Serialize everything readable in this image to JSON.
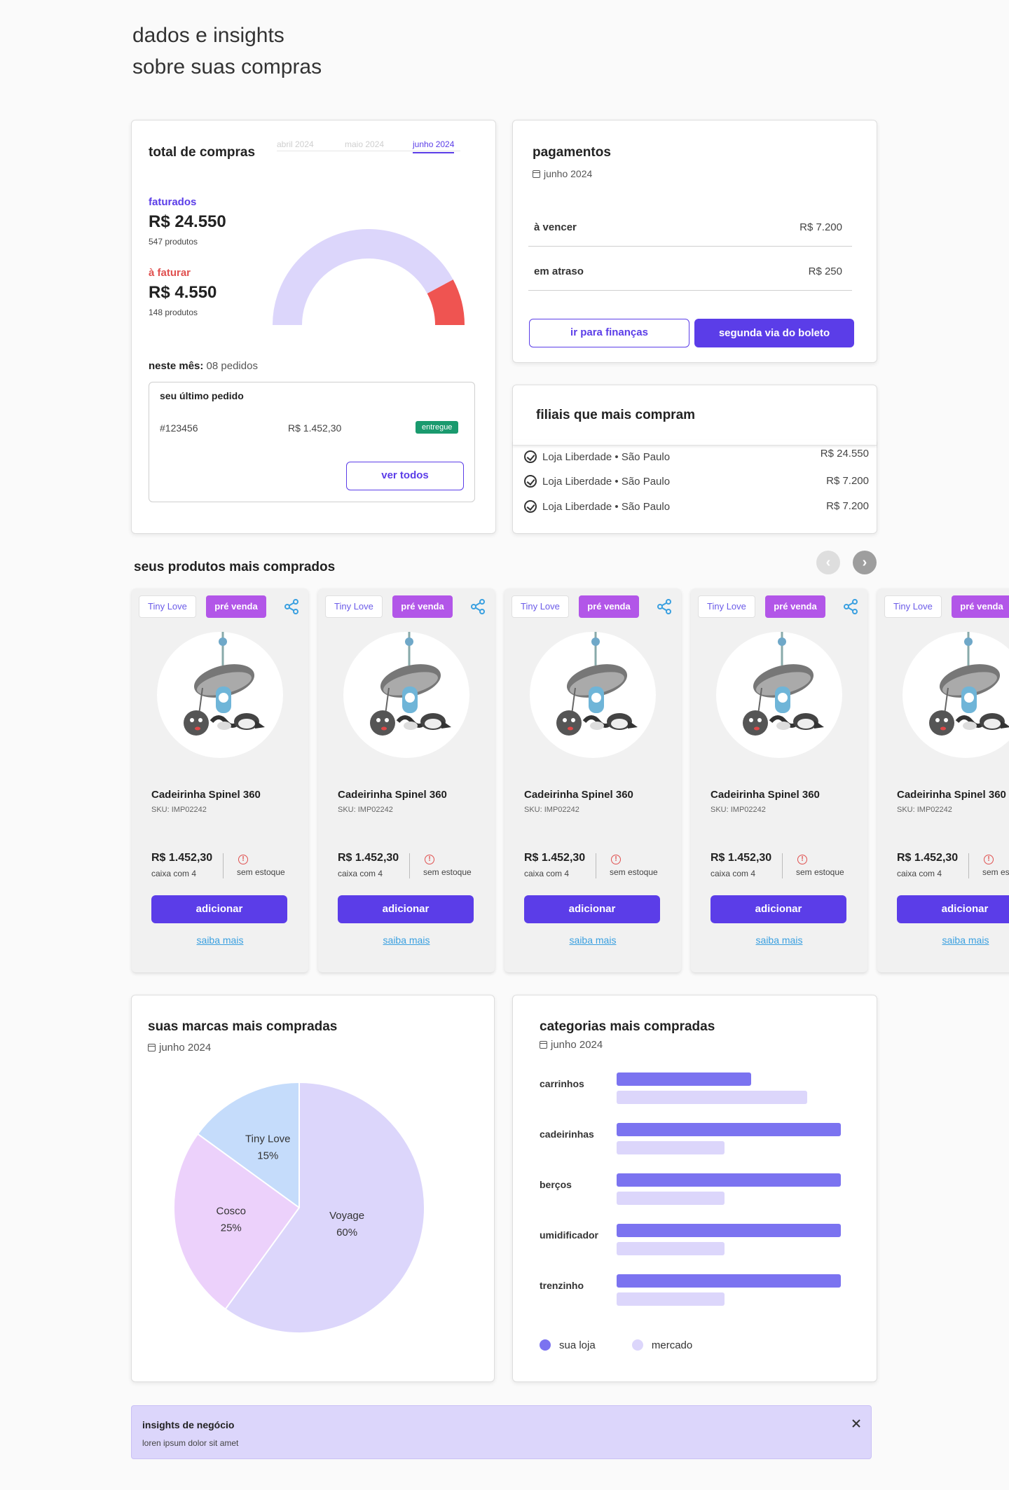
{
  "hero": {
    "line1": "dados e insights",
    "line2": "sobre suas compras"
  },
  "total": {
    "title": "total de compras",
    "tabs": [
      "abril 2024",
      "maio 2024",
      "junho 2024"
    ],
    "faturados": {
      "label": "faturados",
      "value": "R$ 24.550",
      "sub": "547 produtos"
    },
    "a_faturar": {
      "label": "à faturar",
      "value": "R$ 4.550",
      "sub": "148 produtos"
    },
    "gauge": {
      "faturados_fraction": 0.843,
      "a_faturar_fraction": 0.157,
      "color_faturados": "#dcd6fb",
      "color_a_faturar": "#ef5451"
    },
    "month_label": "neste mês:",
    "month_value": "08 pedidos",
    "last_order": {
      "title": "seu último pedido",
      "id": "#123456",
      "value": "R$ 1.452,30",
      "status": "entregue",
      "button": "ver todos"
    }
  },
  "pagamentos": {
    "title": "pagamentos",
    "period": "junho 2024",
    "rows": [
      {
        "label": "à vencer",
        "value": "R$ 7.200"
      },
      {
        "label": "em atraso",
        "value": "R$ 250"
      }
    ],
    "btn_financas": "ir para finanças",
    "btn_boleto": "segunda via do boleto"
  },
  "filiais": {
    "title": "filiais que mais compram",
    "items": [
      {
        "name": "Loja Liberdade • São Paulo",
        "value": "R$ 24.550"
      },
      {
        "name": "Loja Liberdade • São Paulo",
        "value": "R$ 7.200"
      },
      {
        "name": "Loja Liberdade • São Paulo",
        "value": "R$ 7.200"
      }
    ]
  },
  "produtos": {
    "title": "seus produtos mais comprados",
    "prev": "‹",
    "next": "›",
    "items": [
      {
        "brand": "Tiny Love",
        "tag": "pré venda",
        "name": "Cadeirinha Spinel 360",
        "sku": "SKU: IMP02242",
        "price": "R$ 1.452,30",
        "box": "caixa com 4",
        "stock": "sem estoque",
        "add": "adicionar",
        "more": "saiba mais"
      },
      {
        "brand": "Tiny Love",
        "tag": "pré venda",
        "name": "Cadeirinha Spinel 360",
        "sku": "SKU: IMP02242",
        "price": "R$ 1.452,30",
        "box": "caixa com 4",
        "stock": "sem estoque",
        "add": "adicionar",
        "more": "saiba mais"
      },
      {
        "brand": "Tiny Love",
        "tag": "pré venda",
        "name": "Cadeirinha Spinel 360",
        "sku": "SKU: IMP02242",
        "price": "R$ 1.452,30",
        "box": "caixa com 4",
        "stock": "sem estoque",
        "add": "adicionar",
        "more": "saiba mais"
      },
      {
        "brand": "Tiny Love",
        "tag": "pré venda",
        "name": "Cadeirinha Spinel 360",
        "sku": "SKU: IMP02242",
        "price": "R$ 1.452,30",
        "box": "caixa com 4",
        "stock": "sem estoque",
        "add": "adicionar",
        "more": "saiba mais"
      },
      {
        "brand": "Tiny Love",
        "tag": "pré venda",
        "name": "Cadeirinha Spinel 360",
        "sku": "SKU: IMP02242",
        "price": "R$ 1.452,30",
        "box": "caixa com 4",
        "stock": "sem estoque",
        "add": "adicionar",
        "more": "saiba mais"
      }
    ]
  },
  "marcas": {
    "title": "suas marcas mais compradas",
    "period": "junho 2024"
  },
  "categorias": {
    "title": "categorias mais compradas",
    "period": "junho 2024",
    "legend": [
      "sua loja",
      "mercado"
    ]
  },
  "insights": {
    "title": "insights de negócio",
    "body": "loren ipsum dolor sit amet"
  },
  "chart_data": [
    {
      "type": "pie",
      "categories": [
        "Tiny Love",
        "Cosco",
        "Voyage"
      ],
      "values": [
        15,
        25,
        60
      ],
      "labels": [
        "15%",
        "25%",
        "60%"
      ],
      "colors": [
        "#c5dcfb",
        "#ecd1fb",
        "#dcd6fb"
      ]
    },
    {
      "type": "bar",
      "orientation": "horizontal",
      "categories": [
        "carrinhos",
        "cadeirinhas",
        "berços",
        "umidificador",
        "trenzinho"
      ],
      "series": [
        {
          "name": "sua loja",
          "values": [
            60,
            100,
            100,
            100,
            100
          ],
          "color": "#7b73f0"
        },
        {
          "name": "mercado",
          "values": [
            85,
            48,
            48,
            48,
            48
          ],
          "color": "#dcd6fb"
        }
      ],
      "xlim": [
        0,
        100
      ],
      "legend": "bottom-left"
    }
  ]
}
